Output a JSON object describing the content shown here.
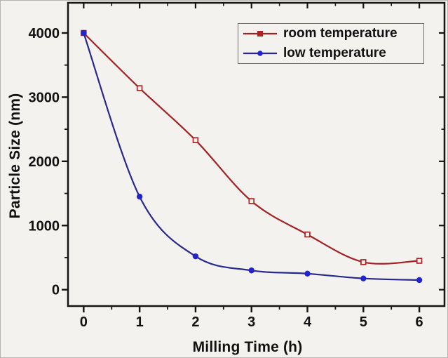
{
  "chart_data": {
    "type": "line",
    "title": "",
    "xlabel": "Milling Time (h)",
    "ylabel": "Particle Size (nm)",
    "x": [
      0,
      1,
      2,
      3,
      4,
      5,
      6
    ],
    "series": [
      {
        "name": "room temperature",
        "color": "#b02122",
        "line_color": "#a52022",
        "marker": "open-square",
        "values": [
          4000,
          3140,
          2330,
          1380,
          860,
          430,
          450
        ]
      },
      {
        "name": "low temperature",
        "color": "#2424cc",
        "line_color": "#28288e",
        "marker": "filled-circle",
        "values": [
          4000,
          1450,
          520,
          300,
          250,
          175,
          150
        ]
      }
    ],
    "x_ticks": [
      0,
      1,
      2,
      3,
      4,
      5,
      6
    ],
    "x_minor_ticks": [
      0.5,
      1.5,
      2.5,
      3.5,
      4.5,
      5.5
    ],
    "y_ticks": [
      0,
      1000,
      2000,
      3000,
      4000
    ],
    "y_minor_ticks": [
      500,
      1500,
      2500,
      3500
    ],
    "xlim": [
      -0.28,
      6.45
    ],
    "ylim": [
      -255,
      4470
    ],
    "grid": false,
    "legend_position": "top-right",
    "background_color": "#f3f2ef",
    "axis_color": "#141414",
    "tick_label_color": "#111111"
  }
}
